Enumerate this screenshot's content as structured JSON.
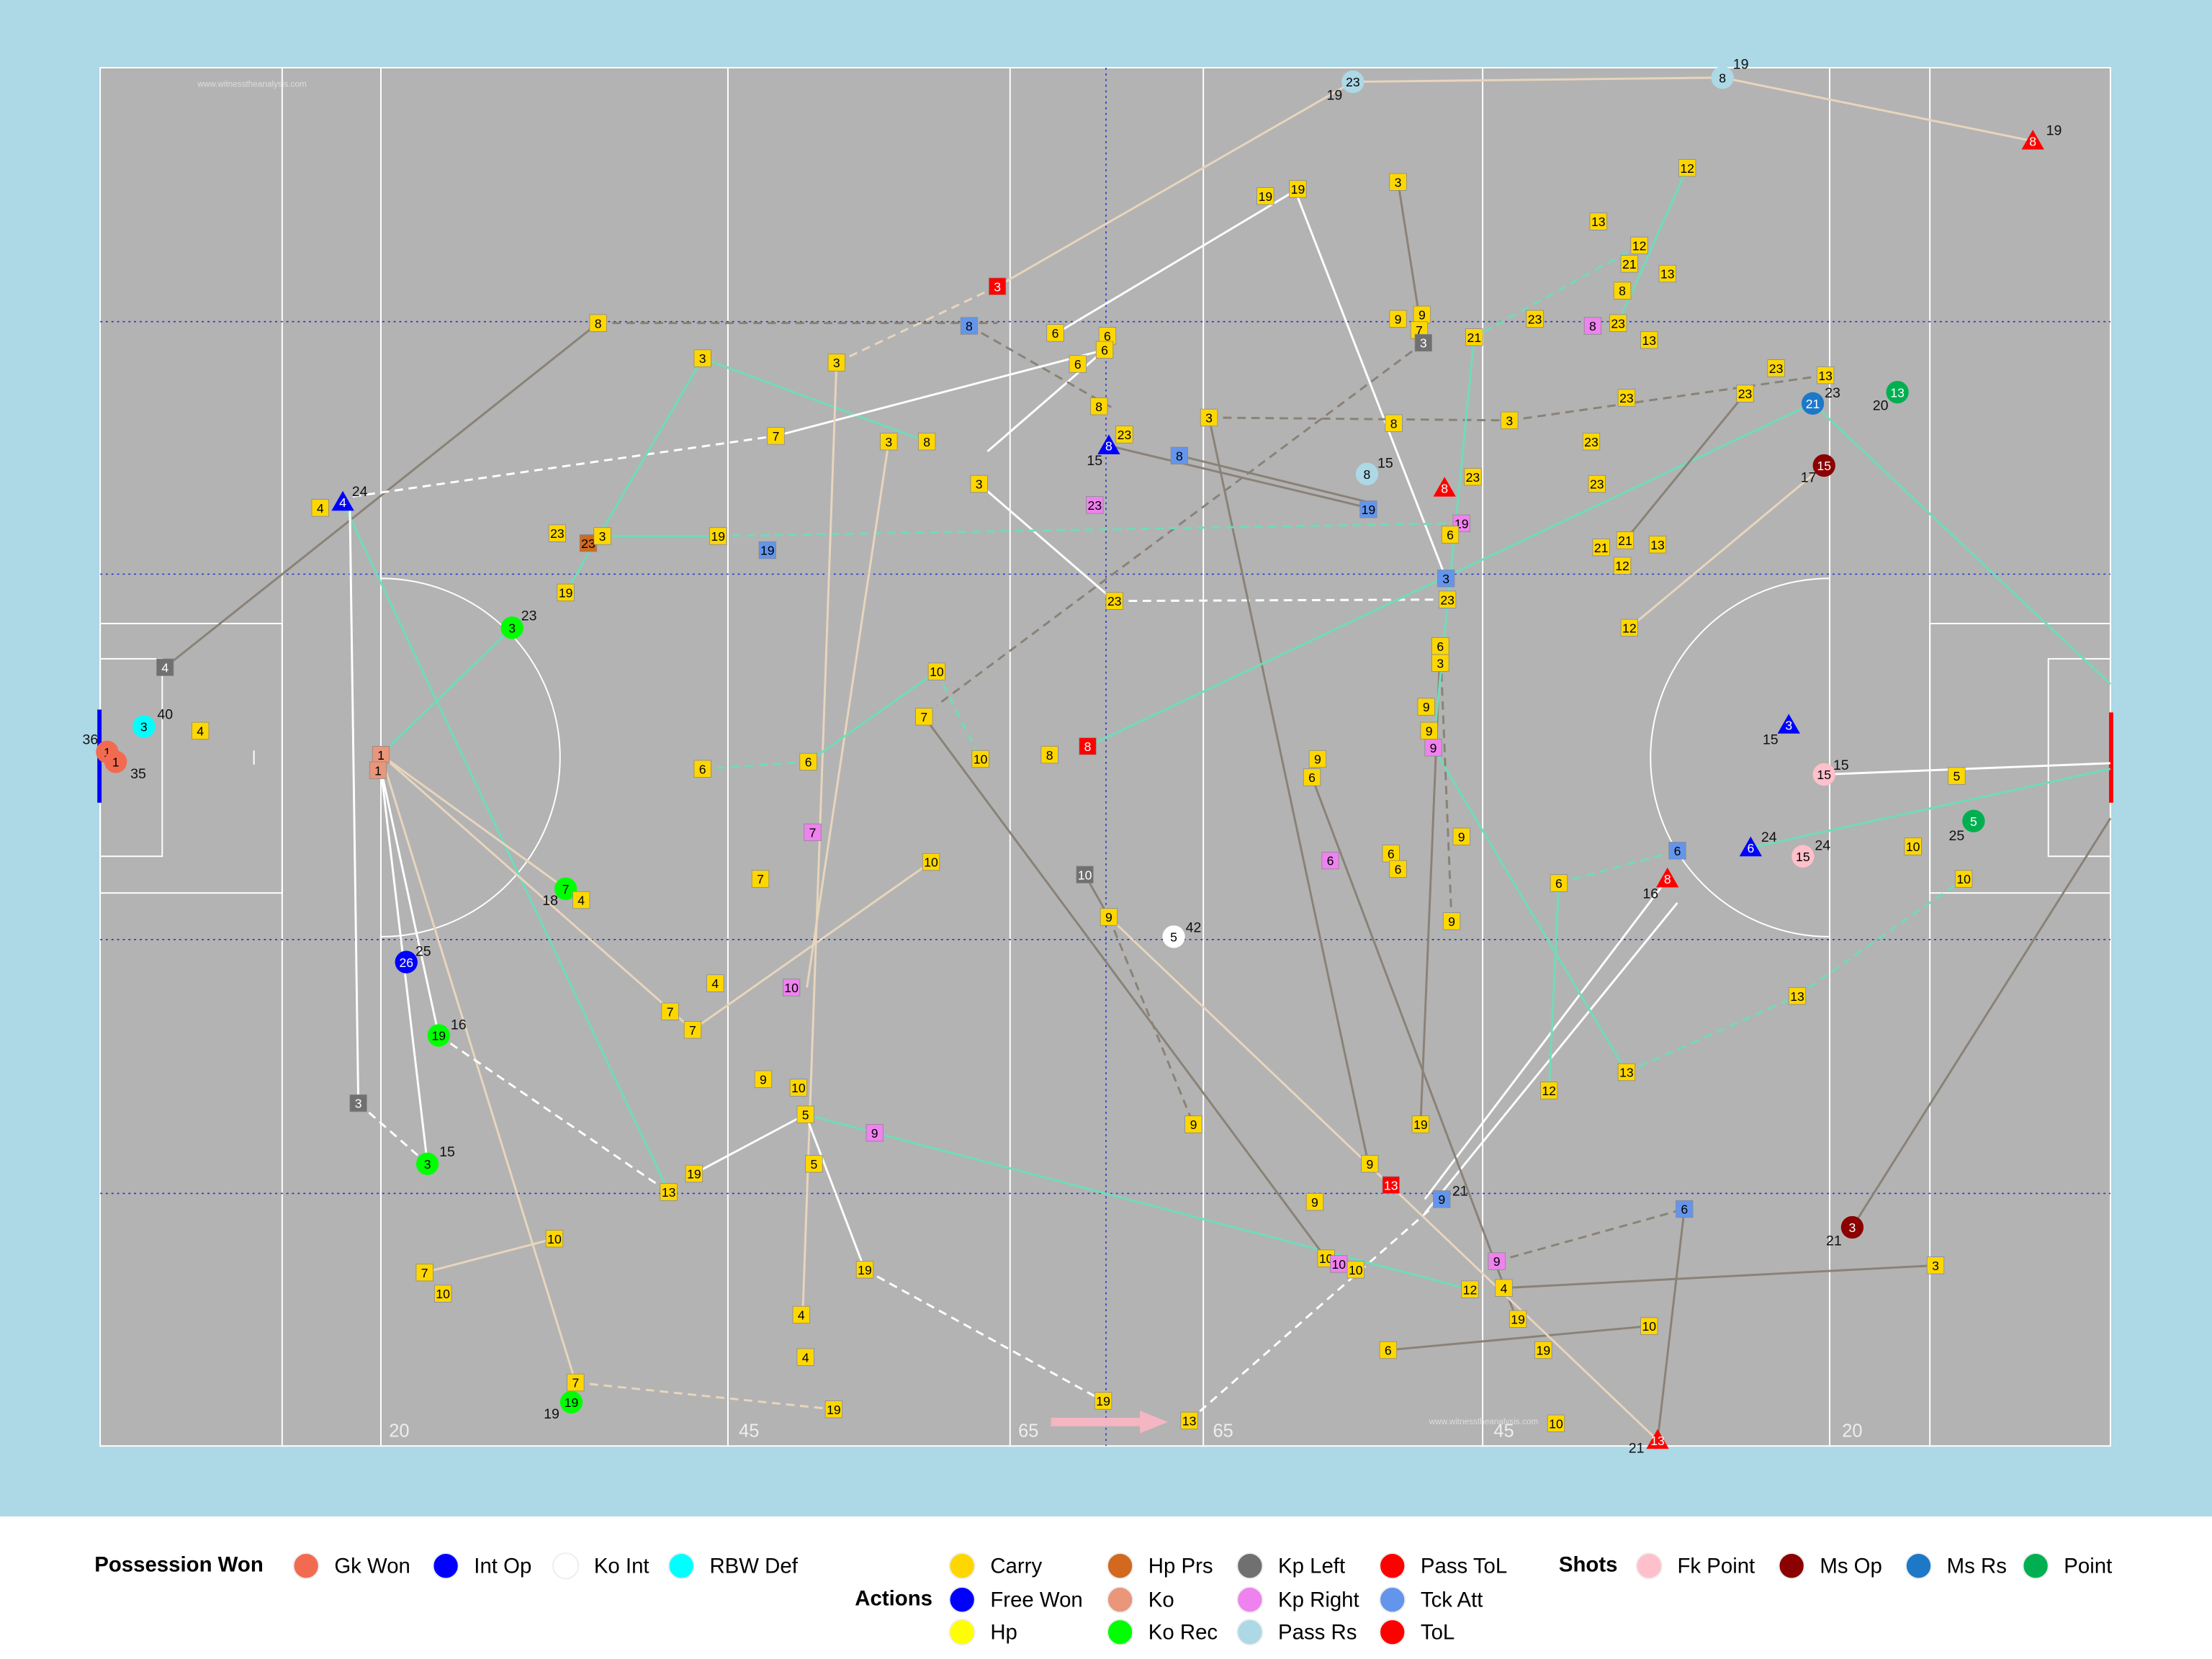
{
  "pitch": {
    "distance_labels": [
      "20",
      "45",
      "65",
      "65",
      "45",
      "20"
    ],
    "watermarks": [
      "www.witnesstheanalysis.com",
      "www.witnesstheanalysis.com"
    ]
  },
  "markers": [
    {
      "label": "23",
      "note": "19"
    },
    {
      "label": "8",
      "note": "19"
    },
    {
      "label": "8",
      "note": "19"
    },
    {
      "label": "3"
    },
    {
      "label": "8"
    },
    {
      "label": "8"
    },
    {
      "label": "6"
    },
    {
      "label": "6"
    },
    {
      "label": "6"
    },
    {
      "label": "6"
    },
    {
      "label": "19"
    },
    {
      "label": "19"
    },
    {
      "label": "3"
    },
    {
      "label": "12"
    },
    {
      "label": "13"
    },
    {
      "label": "12"
    },
    {
      "label": "21"
    },
    {
      "label": "13"
    },
    {
      "label": "8"
    },
    {
      "label": "23"
    },
    {
      "label": "8"
    },
    {
      "label": "13"
    },
    {
      "label": "9"
    },
    {
      "label": "9"
    },
    {
      "label": "7"
    },
    {
      "label": "3"
    },
    {
      "label": "21"
    },
    {
      "label": "23"
    },
    {
      "label": "3"
    },
    {
      "label": "3"
    },
    {
      "label": "8"
    },
    {
      "label": "23"
    },
    {
      "label": "3"
    },
    {
      "label": "8"
    },
    {
      "label": "3"
    },
    {
      "label": "23"
    },
    {
      "label": "23"
    },
    {
      "label": "13"
    },
    {
      "label": "23"
    },
    {
      "label": "21",
      "note": "23"
    },
    {
      "label": "13",
      "note": "20"
    },
    {
      "label": "15",
      "note": "17"
    },
    {
      "label": "7"
    },
    {
      "label": "3"
    },
    {
      "label": "8"
    },
    {
      "label": "8",
      "note": "15"
    },
    {
      "label": "8"
    },
    {
      "label": "3"
    },
    {
      "label": "8",
      "note": "15"
    },
    {
      "label": "8"
    },
    {
      "label": "23"
    },
    {
      "label": "23"
    },
    {
      "label": "23"
    },
    {
      "label": "4"
    },
    {
      "label": "4",
      "note": "24"
    },
    {
      "label": "23"
    },
    {
      "label": "19"
    },
    {
      "label": "19"
    },
    {
      "label": "6"
    },
    {
      "label": "21"
    },
    {
      "label": "21"
    },
    {
      "label": "13"
    },
    {
      "label": "12"
    },
    {
      "label": "23"
    },
    {
      "label": "23"
    },
    {
      "label": "3"
    },
    {
      "label": "19"
    },
    {
      "label": "19"
    },
    {
      "label": "19"
    },
    {
      "label": "3",
      "note": "23"
    },
    {
      "label": "23"
    },
    {
      "label": "3"
    },
    {
      "label": "23"
    },
    {
      "label": "12"
    },
    {
      "label": "4"
    },
    {
      "label": "4"
    },
    {
      "label": "3",
      "note": "40"
    },
    {
      "label": "1",
      "note": "36"
    },
    {
      "label": "1",
      "note": "35"
    },
    {
      "label": "1"
    },
    {
      "label": "1"
    },
    {
      "label": "10"
    },
    {
      "label": "7"
    },
    {
      "label": "10"
    },
    {
      "label": "8"
    },
    {
      "label": "8"
    },
    {
      "label": "6"
    },
    {
      "label": "6"
    },
    {
      "label": "7"
    },
    {
      "label": "6"
    },
    {
      "label": "3"
    },
    {
      "label": "9"
    },
    {
      "label": "9"
    },
    {
      "label": "9"
    },
    {
      "label": "9"
    },
    {
      "label": "6"
    },
    {
      "label": "3",
      "note": "15"
    },
    {
      "label": "15",
      "note": "15"
    },
    {
      "label": "5"
    },
    {
      "label": "5",
      "note": "25"
    },
    {
      "label": "10"
    },
    {
      "label": "10"
    },
    {
      "label": "6"
    },
    {
      "label": "6",
      "note": "24"
    },
    {
      "label": "15",
      "note": "24"
    },
    {
      "label": "8",
      "note": "16"
    },
    {
      "label": "6"
    },
    {
      "label": "6"
    },
    {
      "label": "6"
    },
    {
      "label": "6"
    },
    {
      "label": "9"
    },
    {
      "label": "9"
    },
    {
      "label": "7",
      "note": "18"
    },
    {
      "label": "4"
    },
    {
      "label": "7"
    },
    {
      "label": "10"
    },
    {
      "label": "10"
    },
    {
      "label": "9"
    },
    {
      "label": "5",
      "note": "42"
    },
    {
      "label": "26",
      "note": "25"
    },
    {
      "label": "4"
    },
    {
      "label": "10"
    },
    {
      "label": "7"
    },
    {
      "label": "7"
    },
    {
      "label": "19",
      "note": "16"
    },
    {
      "label": "13"
    },
    {
      "label": "13"
    },
    {
      "label": "12"
    },
    {
      "label": "3"
    },
    {
      "label": "9"
    },
    {
      "label": "10"
    },
    {
      "label": "5"
    },
    {
      "label": "5"
    },
    {
      "label": "9"
    },
    {
      "label": "3",
      "note": "15"
    },
    {
      "label": "19"
    },
    {
      "label": "13"
    },
    {
      "label": "9"
    },
    {
      "label": "19"
    },
    {
      "label": "9"
    },
    {
      "label": "13"
    },
    {
      "label": "9",
      "note": "21"
    },
    {
      "label": "9"
    },
    {
      "label": "6"
    },
    {
      "label": "3",
      "note": "21"
    },
    {
      "label": "3"
    },
    {
      "label": "10"
    },
    {
      "label": "7"
    },
    {
      "label": "10"
    },
    {
      "label": "19"
    },
    {
      "label": "10"
    },
    {
      "label": "10"
    },
    {
      "label": "10"
    },
    {
      "label": "9"
    },
    {
      "label": "12"
    },
    {
      "label": "4"
    },
    {
      "label": "19"
    },
    {
      "label": "4"
    },
    {
      "label": "4"
    },
    {
      "label": "10"
    },
    {
      "label": "6"
    },
    {
      "label": "19"
    },
    {
      "label": "7"
    },
    {
      "label": "19",
      "note": "19"
    },
    {
      "label": "19"
    },
    {
      "label": "19"
    },
    {
      "label": "13"
    },
    {
      "label": "10"
    },
    {
      "label": "13",
      "note": "21"
    }
  ],
  "legend": {
    "groups": [
      {
        "title": "Possession Won",
        "items": [
          {
            "name": "Gk Won",
            "color": "#f26b50"
          },
          {
            "name": "Int Op",
            "color": "#0000ff"
          },
          {
            "name": "Ko Int",
            "color": "#ffffff"
          },
          {
            "name": "RBW Def",
            "color": "#00ffff"
          }
        ]
      },
      {
        "title": "Actions",
        "items": [
          {
            "name": "Carry",
            "color": "#ffd700"
          },
          {
            "name": "Free Won",
            "color": "#0000ff"
          },
          {
            "name": "Hp",
            "color": "#ffff00"
          },
          {
            "name": "Hp Prs",
            "color": "#d2691e"
          },
          {
            "name": "Ko",
            "color": "#e9967a"
          },
          {
            "name": "Ko Rec",
            "color": "#00ff00"
          },
          {
            "name": "Kp Left",
            "color": "#707070"
          },
          {
            "name": "Kp Right",
            "color": "#ee82ee"
          },
          {
            "name": "Pass Rs",
            "color": "#add8e6"
          },
          {
            "name": "Pass ToL",
            "color": "#ff0000"
          },
          {
            "name": "Tck Att",
            "color": "#6495ed"
          },
          {
            "name": "ToL",
            "color": "#ff0000"
          }
        ]
      },
      {
        "title": "Shots",
        "items": [
          {
            "name": "Fk Point",
            "color": "#ffc0cb"
          },
          {
            "name": "Ms Op",
            "color": "#8b0000"
          },
          {
            "name": "Ms Rs",
            "color": "#1e78c8"
          },
          {
            "name": "Point",
            "color": "#00b050"
          }
        ]
      }
    ]
  }
}
